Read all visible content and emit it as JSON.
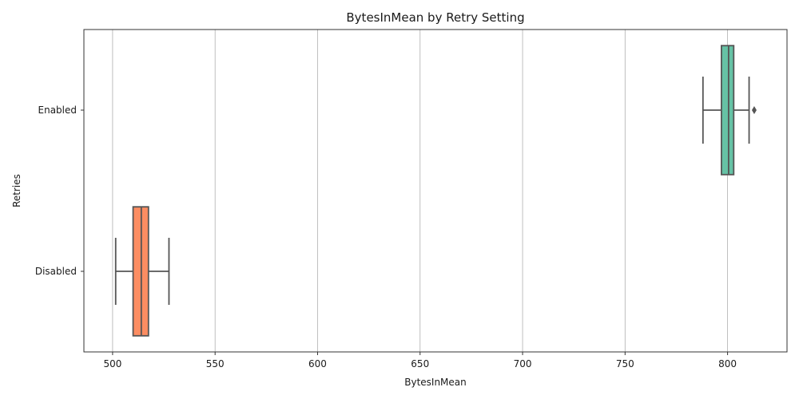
{
  "chart_data": {
    "type": "box",
    "orientation": "horizontal",
    "title": "BytesInMean by Retry Setting",
    "xlabel": "BytesInMean",
    "ylabel": "Retries",
    "xlim": [
      486,
      829
    ],
    "xticks": [
      500,
      550,
      600,
      650,
      700,
      750,
      800
    ],
    "grid": "vertical",
    "categories": [
      "Enabled",
      "Disabled"
    ],
    "boxes": [
      {
        "category": "Enabled",
        "color": "#66c2a5",
        "whisker_low": 788,
        "q1": 797,
        "median": 800.5,
        "q3": 803,
        "whisker_high": 810.5,
        "outliers": [
          813
        ]
      },
      {
        "category": "Disabled",
        "color": "#fc8d62",
        "whisker_low": 501.5,
        "q1": 510,
        "median": 514,
        "q3": 517.5,
        "whisker_high": 527.5,
        "outliers": []
      }
    ]
  }
}
